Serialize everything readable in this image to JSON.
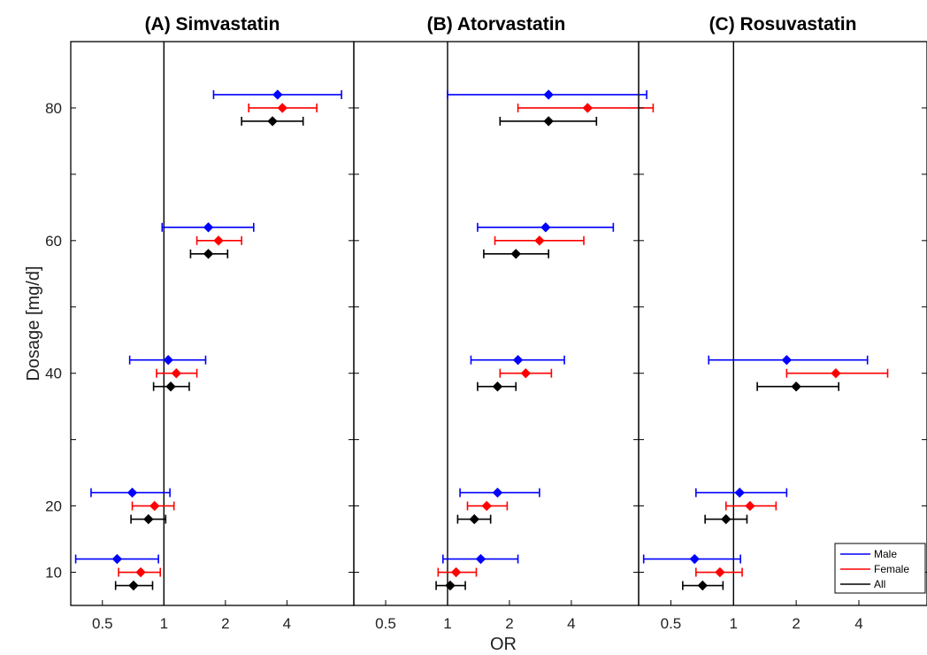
{
  "chart_data": [
    {
      "type": "scatter",
      "title": "(A) Simvastatin",
      "xlabel": "",
      "ylabel": "Dosage [mg/d]",
      "xscale": "log2",
      "xlim": [
        0.35,
        8.5
      ],
      "ylim": [
        5,
        90
      ],
      "xticks": [
        "0.5",
        "1",
        "2",
        "4"
      ],
      "yticks": [
        "10",
        "20",
        "40",
        "60",
        "80"
      ],
      "reference_line_x": 1,
      "series": [
        {
          "name": "All",
          "color": "#000000",
          "points": [
            {
              "y": 80,
              "or": 3.4,
              "lo": 2.4,
              "hi": 4.8
            },
            {
              "y": 60,
              "or": 1.65,
              "lo": 1.35,
              "hi": 2.05
            },
            {
              "y": 40,
              "or": 1.08,
              "lo": 0.89,
              "hi": 1.33
            },
            {
              "y": 20,
              "or": 0.84,
              "lo": 0.69,
              "hi": 1.02
            },
            {
              "y": 10,
              "or": 0.71,
              "lo": 0.58,
              "hi": 0.88
            }
          ]
        },
        {
          "name": "Female",
          "color": "#ff0000",
          "points": [
            {
              "y": 80,
              "or": 3.8,
              "lo": 2.6,
              "hi": 5.6
            },
            {
              "y": 60,
              "or": 1.85,
              "lo": 1.45,
              "hi": 2.4
            },
            {
              "y": 40,
              "or": 1.15,
              "lo": 0.92,
              "hi": 1.45
            },
            {
              "y": 20,
              "or": 0.9,
              "lo": 0.7,
              "hi": 1.12
            },
            {
              "y": 10,
              "or": 0.77,
              "lo": 0.6,
              "hi": 0.96
            }
          ]
        },
        {
          "name": "Male",
          "color": "#0000ff",
          "points": [
            {
              "y": 80,
              "or": 3.6,
              "lo": 1.75,
              "hi": 7.4
            },
            {
              "y": 60,
              "or": 1.65,
              "lo": 0.98,
              "hi": 2.75
            },
            {
              "y": 40,
              "or": 1.05,
              "lo": 0.68,
              "hi": 1.6
            },
            {
              "y": 20,
              "or": 0.7,
              "lo": 0.44,
              "hi": 1.07
            },
            {
              "y": 10,
              "or": 0.59,
              "lo": 0.37,
              "hi": 0.94
            }
          ]
        }
      ]
    },
    {
      "type": "scatter",
      "title": "(B) Atorvastatin",
      "xlabel": "OR",
      "ylabel": "",
      "xscale": "log2",
      "xlim": [
        0.35,
        8.5
      ],
      "ylim": [
        5,
        90
      ],
      "xticks": [
        "0.5",
        "1",
        "2",
        "4"
      ],
      "yticks": [],
      "reference_line_x": 1,
      "series": [
        {
          "name": "All",
          "color": "#000000",
          "points": [
            {
              "y": 80,
              "or": 3.1,
              "lo": 1.8,
              "hi": 5.3
            },
            {
              "y": 60,
              "or": 2.15,
              "lo": 1.5,
              "hi": 3.1
            },
            {
              "y": 40,
              "or": 1.75,
              "lo": 1.4,
              "hi": 2.15
            },
            {
              "y": 20,
              "or": 1.35,
              "lo": 1.12,
              "hi": 1.62
            },
            {
              "y": 10,
              "or": 1.03,
              "lo": 0.88,
              "hi": 1.22
            }
          ]
        },
        {
          "name": "Female",
          "color": "#ff0000",
          "points": [
            {
              "y": 80,
              "or": 4.8,
              "lo": 2.2,
              "hi": 10.0
            },
            {
              "y": 60,
              "or": 2.8,
              "lo": 1.7,
              "hi": 4.6
            },
            {
              "y": 40,
              "or": 2.4,
              "lo": 1.8,
              "hi": 3.2
            },
            {
              "y": 20,
              "or": 1.55,
              "lo": 1.25,
              "hi": 1.95
            },
            {
              "y": 10,
              "or": 1.1,
              "lo": 0.9,
              "hi": 1.38
            }
          ]
        },
        {
          "name": "Male",
          "color": "#0000ff",
          "points": [
            {
              "y": 80,
              "or": 3.1,
              "lo": 1.0,
              "hi": 9.3
            },
            {
              "y": 60,
              "or": 3.0,
              "lo": 1.4,
              "hi": 6.4
            },
            {
              "y": 40,
              "or": 2.2,
              "lo": 1.3,
              "hi": 3.7
            },
            {
              "y": 20,
              "or": 1.75,
              "lo": 1.15,
              "hi": 2.8
            },
            {
              "y": 10,
              "or": 1.45,
              "lo": 0.95,
              "hi": 2.2
            }
          ]
        }
      ]
    },
    {
      "type": "scatter",
      "title": "(C) Rosuvastatin",
      "xlabel": "",
      "ylabel": "",
      "xscale": "log2",
      "xlim": [
        0.35,
        8.5
      ],
      "ylim": [
        5,
        90
      ],
      "xticks": [
        "0.5",
        "1",
        "2",
        "4"
      ],
      "yticks": [],
      "reference_line_x": 1,
      "series": [
        {
          "name": "All",
          "color": "#000000",
          "points": [
            {
              "y": 40,
              "or": 2.0,
              "lo": 1.3,
              "hi": 3.2
            },
            {
              "y": 20,
              "or": 0.92,
              "lo": 0.73,
              "hi": 1.16
            },
            {
              "y": 10,
              "or": 0.71,
              "lo": 0.57,
              "hi": 0.89
            }
          ]
        },
        {
          "name": "Female",
          "color": "#ff0000",
          "points": [
            {
              "y": 40,
              "or": 3.1,
              "lo": 1.8,
              "hi": 5.5
            },
            {
              "y": 20,
              "or": 1.2,
              "lo": 0.92,
              "hi": 1.6
            },
            {
              "y": 10,
              "or": 0.86,
              "lo": 0.66,
              "hi": 1.1
            }
          ]
        },
        {
          "name": "Male",
          "color": "#0000ff",
          "points": [
            {
              "y": 40,
              "or": 1.8,
              "lo": 0.76,
              "hi": 4.4
            },
            {
              "y": 20,
              "or": 1.07,
              "lo": 0.66,
              "hi": 1.8
            },
            {
              "y": 10,
              "or": 0.65,
              "lo": 0.37,
              "hi": 1.08
            }
          ]
        }
      ]
    }
  ],
  "legend": {
    "placement": "bottom-right",
    "entries": [
      {
        "label": "Male",
        "color": "#0000ff"
      },
      {
        "label": "Female",
        "color": "#ff0000"
      },
      {
        "label": "All",
        "color": "#000000"
      }
    ]
  }
}
